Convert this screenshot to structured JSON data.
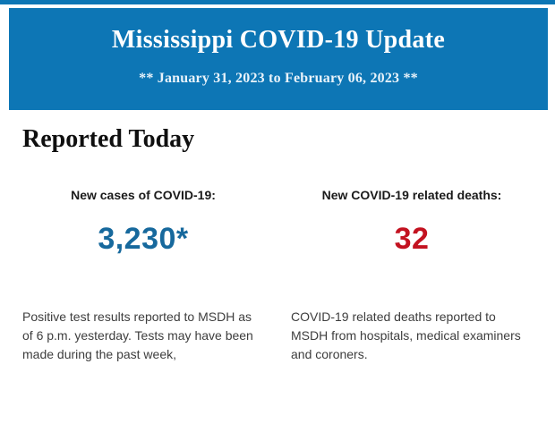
{
  "theme": {
    "banner_background": "#0d76b5",
    "title_color": "#ffffff",
    "subtitle_color": "#e9f3fa"
  },
  "banner": {
    "title": "Mississippi COVID-19 Update",
    "subtitle": "** January 31, 2023 to February 06, 2023 **"
  },
  "section": {
    "heading": "Reported Today"
  },
  "stats": {
    "cases": {
      "label": "New cases of COVID-19:",
      "value": "3,230*",
      "value_color": "#17699d",
      "description": "Positive test results reported to MSDH as of 6 p.m. yesterday. Tests may have been made during the past week,"
    },
    "deaths": {
      "label": "New COVID-19 related deaths:",
      "value": "32",
      "value_color": "#c31220",
      "description": "COVID-19 related deaths reported to MSDH from hospitals, medical examiners and coroners."
    }
  }
}
